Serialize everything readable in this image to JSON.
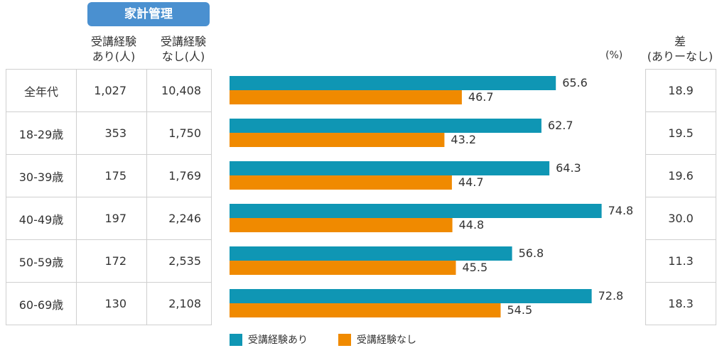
{
  "header": {
    "badge": "家計管理",
    "col_with_line1": "受講経験",
    "col_with_line2": "あり(人)",
    "col_without_line1": "受講経験",
    "col_without_line2": "なし(人)",
    "unit": "(%)",
    "diff_line1": "差",
    "diff_line2": "(ありーなし)"
  },
  "rows": [
    {
      "age": "全年代",
      "n_with": "1,027",
      "n_without": "10,408",
      "diff": "18.9"
    },
    {
      "age": "18-29歳",
      "n_with": "353",
      "n_without": "1,750",
      "diff": "19.5"
    },
    {
      "age": "30-39歳",
      "n_with": "175",
      "n_without": "1,769",
      "diff": "19.6"
    },
    {
      "age": "40-49歳",
      "n_with": "197",
      "n_without": "2,246",
      "diff": "30.0"
    },
    {
      "age": "50-59歳",
      "n_with": "172",
      "n_without": "2,535",
      "diff": "11.3"
    },
    {
      "age": "60-69歳",
      "n_with": "130",
      "n_without": "2,108",
      "diff": "18.3"
    }
  ],
  "legend": {
    "with": "受講経験あり",
    "without": "受講経験なし"
  },
  "colors": {
    "with": "#0f96b4",
    "without": "#f08a00"
  },
  "chart_data": {
    "type": "bar",
    "orientation": "horizontal",
    "title": "家計管理",
    "unit": "(%)",
    "categories": [
      "全年代",
      "18-29歳",
      "30-39歳",
      "40-49歳",
      "50-59歳",
      "60-69歳"
    ],
    "series": [
      {
        "name": "受講経験あり",
        "values": [
          65.6,
          62.7,
          64.3,
          74.8,
          56.8,
          72.8
        ]
      },
      {
        "name": "受講経験なし",
        "values": [
          46.7,
          43.2,
          44.7,
          44.8,
          45.5,
          54.5
        ]
      }
    ],
    "xlim": [
      0,
      80
    ],
    "grid": false,
    "legend_position": "bottom"
  }
}
